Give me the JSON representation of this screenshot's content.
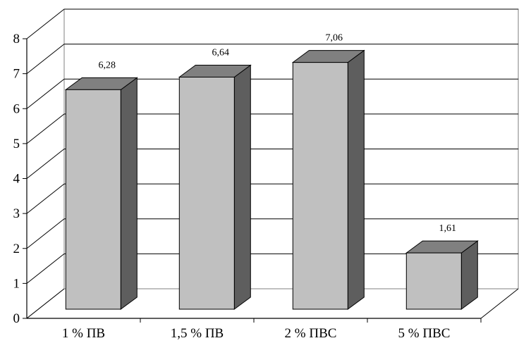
{
  "chart_data": {
    "type": "bar",
    "categories": [
      "1 % ПВ",
      "1,5 % ПВ",
      "2 % ПВС",
      "5 % ПВС"
    ],
    "values": [
      6.28,
      6.64,
      7.06,
      1.61
    ],
    "value_labels": [
      "6,28",
      "6,64",
      "7,06",
      "1,61"
    ],
    "title": "",
    "xlabel": "",
    "ylabel": "",
    "ylim": [
      0,
      8
    ],
    "yticks": [
      "0",
      "1",
      "2",
      "3",
      "4",
      "5",
      "6",
      "7",
      "8"
    ],
    "grid": true,
    "style": "3d-column",
    "colors": {
      "bar_front": "#c0c0c0",
      "bar_side": "#5e5e5e",
      "bar_top": "#808080",
      "outline": "#000000",
      "grid": "#000000",
      "background": "#ffffff"
    }
  }
}
